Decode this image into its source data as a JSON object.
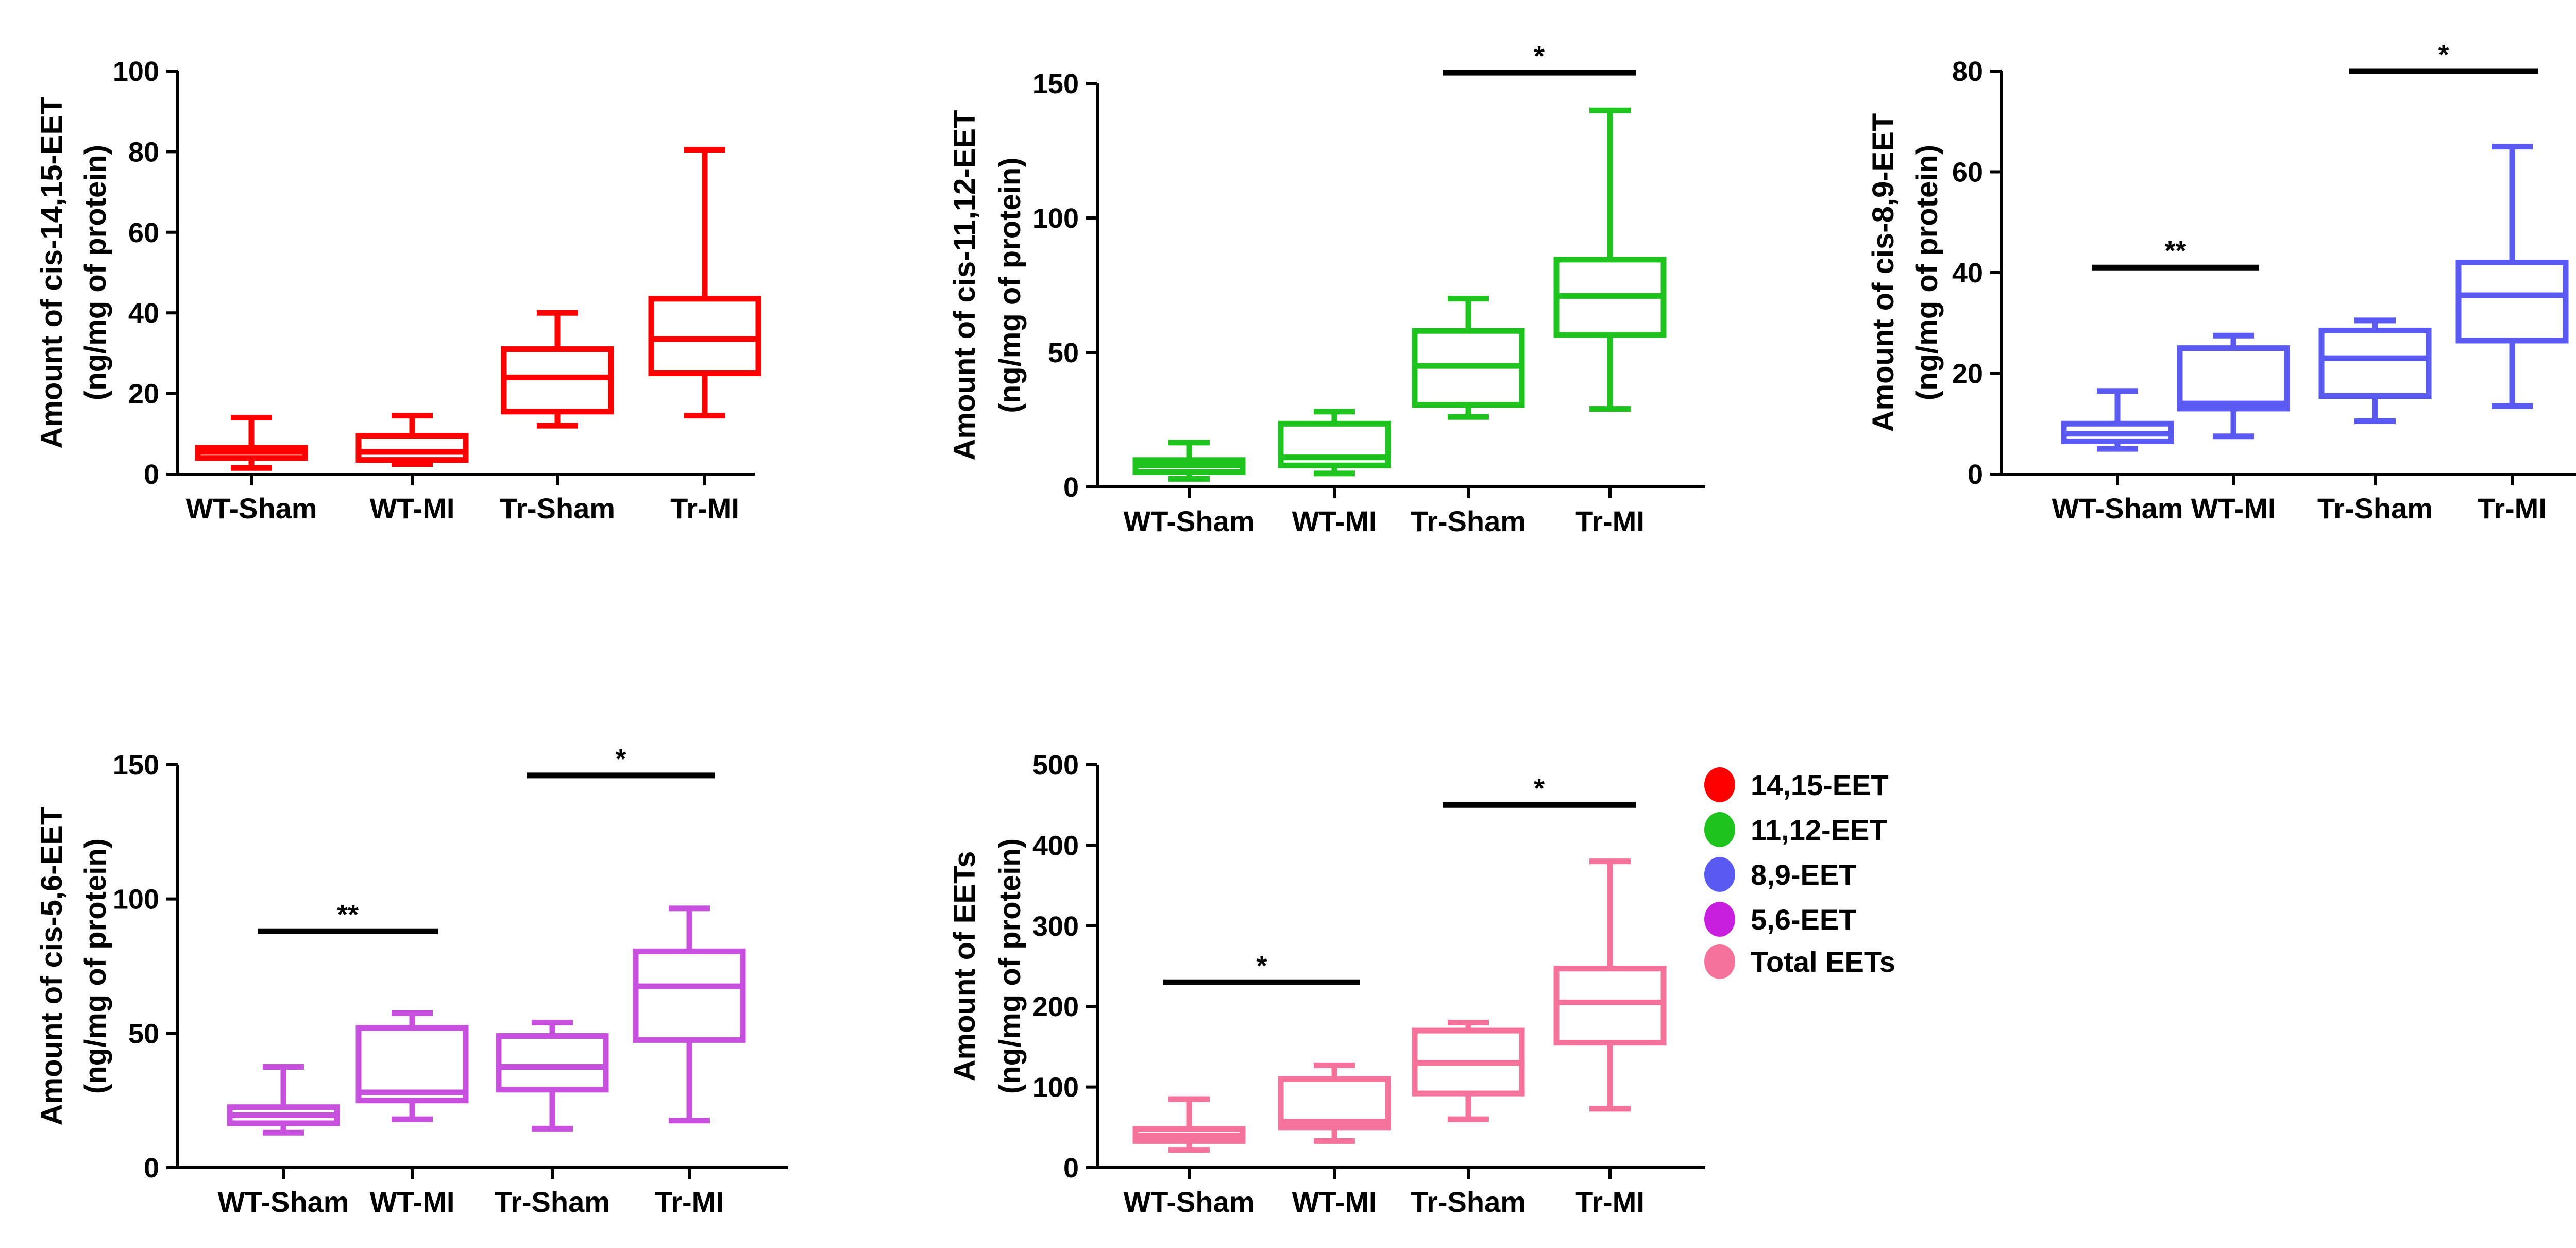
{
  "chart_data": [
    {
      "type": "box",
      "ylabel_line1": "Amount of cis-14,15-EET",
      "ylabel_line2": "(ng/mg of protein)",
      "categories": [
        "WT-Sham",
        "WT-MI",
        "Tr-Sham",
        "Tr-MI"
      ],
      "ylim": [
        0,
        100
      ],
      "yticks": [
        0,
        20,
        40,
        60,
        80,
        100
      ],
      "color": "#ff0000",
      "boxes": [
        {
          "min": 1.5,
          "q1": 4.0,
          "median": 5.5,
          "q3": 6.5,
          "max": 14.0
        },
        {
          "min": 2.5,
          "q1": 3.5,
          "median": 5.5,
          "q3": 9.5,
          "max": 14.5
        },
        {
          "min": 12.0,
          "q1": 15.5,
          "median": 24.0,
          "q3": 31.0,
          "max": 40.0
        },
        {
          "min": 14.5,
          "q1": 25.0,
          "median": 33.5,
          "q3": 43.5,
          "max": 80.5
        }
      ],
      "significance": []
    },
    {
      "type": "box",
      "ylabel_line1": "Amount of cis-11,12-EET",
      "ylabel_line2": "(ng/mg of protein)",
      "categories": [
        "WT-Sham",
        "WT-MI",
        "Tr-Sham",
        "Tr-MI"
      ],
      "ylim": [
        0,
        150
      ],
      "yticks": [
        0,
        50,
        100,
        150
      ],
      "color": "#1ec31e",
      "boxes": [
        {
          "min": 3.0,
          "q1": 5.5,
          "median": 8.0,
          "q3": 10.0,
          "max": 16.5
        },
        {
          "min": 5.0,
          "q1": 8.0,
          "median": 11.0,
          "q3": 23.5,
          "max": 28.0
        },
        {
          "min": 26.0,
          "q1": 30.5,
          "median": 45.0,
          "q3": 58.0,
          "max": 70.0
        },
        {
          "min": 29.0,
          "q1": 56.5,
          "median": 71.0,
          "q3": 84.5,
          "max": 140.0
        }
      ],
      "significance": [
        {
          "from": 2,
          "to": 3,
          "label": "*",
          "y": 154
        }
      ]
    },
    {
      "type": "box",
      "ylabel_line1": "Amount of cis-8,9-EET",
      "ylabel_line2": "(ng/mg of protein)",
      "categories": [
        "WT-Sham",
        "WT-MI",
        "Tr-Sham",
        "Tr-MI"
      ],
      "ylim": [
        0,
        80
      ],
      "yticks": [
        0,
        20,
        40,
        60,
        80
      ],
      "color": "#5a5af2",
      "boxes": [
        {
          "min": 5.0,
          "q1": 6.5,
          "median": 8.0,
          "q3": 10.0,
          "max": 16.5
        },
        {
          "min": 7.5,
          "q1": 13.0,
          "median": 14.0,
          "q3": 25.0,
          "max": 27.5
        },
        {
          "min": 10.5,
          "q1": 15.5,
          "median": 23.0,
          "q3": 28.5,
          "max": 30.5
        },
        {
          "min": 13.5,
          "q1": 26.5,
          "median": 35.5,
          "q3": 42.0,
          "max": 65.0
        }
      ],
      "significance": [
        {
          "from": 0,
          "to": 1,
          "label": "**",
          "y": 41
        },
        {
          "from": 2,
          "to": 3,
          "label": "*",
          "y": 80
        }
      ]
    },
    {
      "type": "box",
      "ylabel_line1": "Amount of cis-5,6-EET",
      "ylabel_line2": "(ng/mg of protein)",
      "categories": [
        "WT-Sham",
        "WT-MI",
        "Tr-Sham",
        "Tr-MI"
      ],
      "ylim": [
        0,
        150
      ],
      "yticks": [
        0,
        50,
        100,
        150
      ],
      "color": "#c850de",
      "boxes": [
        {
          "min": 13.0,
          "q1": 16.5,
          "median": 19.5,
          "q3": 22.5,
          "max": 37.5
        },
        {
          "min": 18.0,
          "q1": 25.0,
          "median": 28.0,
          "q3": 52.0,
          "max": 57.5
        },
        {
          "min": 14.5,
          "q1": 29.0,
          "median": 37.5,
          "q3": 49.0,
          "max": 54.0
        },
        {
          "min": 17.5,
          "q1": 47.5,
          "median": 67.5,
          "q3": 80.5,
          "max": 96.5
        }
      ],
      "significance": [
        {
          "from": 0,
          "to": 1,
          "label": "**",
          "y": 88
        },
        {
          "from": 2,
          "to": 3,
          "label": "*",
          "y": 146
        }
      ]
    },
    {
      "type": "box",
      "ylabel_line1": "Amount of  EETs",
      "ylabel_line2": "(ng/mg of protein)",
      "categories": [
        "WT-Sham",
        "WT-MI",
        "Tr-Sham",
        "Tr-MI"
      ],
      "ylim": [
        0,
        500
      ],
      "yticks": [
        0,
        100,
        200,
        300,
        400,
        500
      ],
      "color": "#f5729a",
      "boxes": [
        {
          "min": 22.0,
          "q1": 33.0,
          "median": 40.0,
          "q3": 48.0,
          "max": 85.0
        },
        {
          "min": 33.0,
          "q1": 50.0,
          "median": 57.0,
          "q3": 110.0,
          "max": 127.0
        },
        {
          "min": 60.0,
          "q1": 92.0,
          "median": 130.0,
          "q3": 170.0,
          "max": 180.0
        },
        {
          "min": 73.0,
          "q1": 155.0,
          "median": 205.0,
          "q3": 247.0,
          "max": 380.0
        }
      ],
      "significance": [
        {
          "from": 0,
          "to": 1,
          "label": "*",
          "y": 230
        },
        {
          "from": 2,
          "to": 3,
          "label": "*",
          "y": 450
        }
      ]
    }
  ],
  "legend": [
    {
      "label": "14,15-EET",
      "color": "#ff0000"
    },
    {
      "label": "11,12-EET",
      "color": "#1ec31e"
    },
    {
      "label": "8,9-EET",
      "color": "#5a5af2"
    },
    {
      "label": "5,6-EET",
      "color": "#c81ede"
    },
    {
      "label": "Total EETs",
      "color": "#f5729a"
    }
  ]
}
